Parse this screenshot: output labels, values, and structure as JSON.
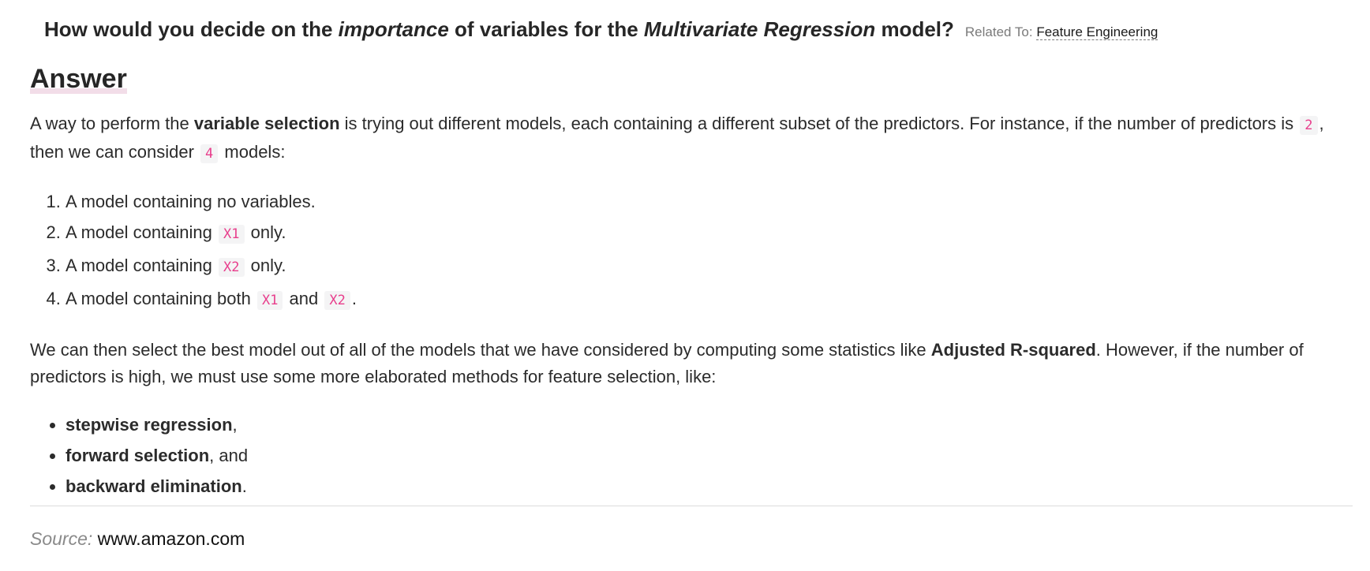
{
  "question": {
    "part1": "How would you decide on the ",
    "em1": "importance",
    "part2": " of variables for the ",
    "em2": "Multivariate Regression",
    "part3": " model?",
    "related_label": "Related To: ",
    "related_link": "Feature Engineering"
  },
  "answer": {
    "heading": "Answer",
    "para1": {
      "t1": "A way to perform the ",
      "b1": "variable selection",
      "t2": " is trying out different models, each containing a different subset of the predictors. For instance, if the number of predictors is ",
      "c1": "2",
      "t3": ", then we can consider ",
      "c2": "4",
      "t4": " models:"
    },
    "models": [
      {
        "text": "A model containing no variables."
      },
      {
        "t1": "A model containing ",
        "c1": "X1",
        "t2": " only."
      },
      {
        "t1": "A model containing ",
        "c1": "X2",
        "t2": " only."
      },
      {
        "t1": "A model containing both ",
        "c1": "X1",
        "t2": " and ",
        "c2": "X2",
        "t3": "."
      }
    ],
    "para2": {
      "t1": "We can then select the best model out of all of the models that we have considered by computing some statistics like ",
      "b1": "Adjusted R-squared",
      "t2": ". However, if the number of predictors is high, we must use some more elaborated methods for feature selection, like:"
    },
    "methods": [
      {
        "bold": "stepwise regression",
        "suffix": ","
      },
      {
        "bold": "forward selection",
        "suffix": ", and"
      },
      {
        "bold": "backward elimination",
        "suffix": "."
      }
    ]
  },
  "source": {
    "label": "Source:",
    "value": "www.amazon.com"
  }
}
